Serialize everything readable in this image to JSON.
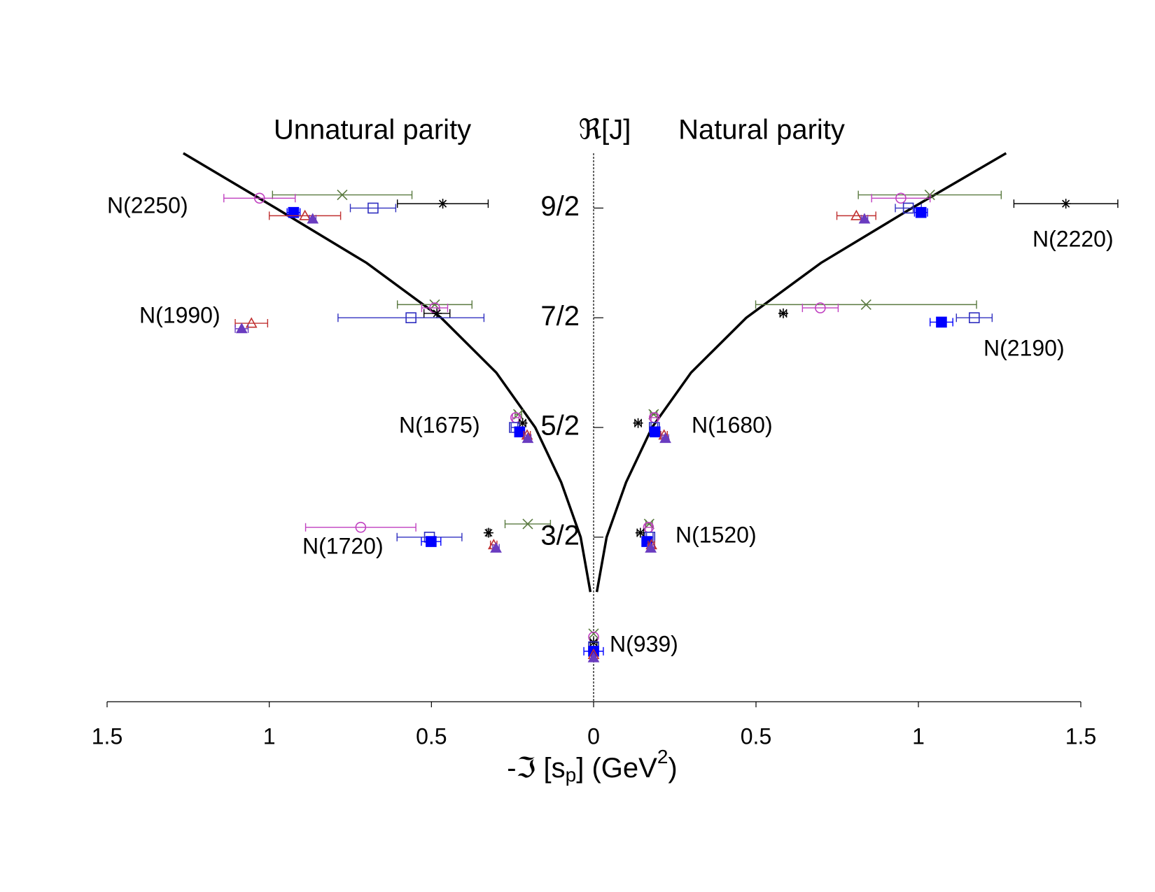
{
  "chart_data": [
    {
      "type": "scatter",
      "title": "Unnatural parity",
      "xlim": [
        1.5,
        0
      ],
      "ylim": [
        0,
        5
      ],
      "xticks": [
        1.5,
        1,
        0.5,
        0
      ],
      "curve": {
        "x": [
          0.01,
          0.04,
          0.1,
          0.18,
          0.3,
          0.47,
          0.7,
          0.98,
          1.265
        ],
        "y": [
          1,
          1.5,
          2,
          2.5,
          3,
          3.5,
          4,
          4.5,
          5
        ]
      },
      "series": [
        {
          "marker": "cross",
          "color": "#5a7a40",
          "x": [
            0.775,
            0.49,
            0.232,
            0.203
          ],
          "y": [
            4.62,
            3.62,
            2.62,
            1.62
          ],
          "xerr": [
            0.215,
            0.115,
            0.01,
            0.07
          ]
        },
        {
          "marker": "open-circle",
          "color": "#c040c0",
          "x": [
            1.03,
            0.49,
            0.24,
            0.718
          ],
          "y": [
            4.59,
            3.59,
            2.59,
            1.59
          ],
          "xerr": [
            0.11,
            0.04,
            0.01,
            0.17
          ]
        },
        {
          "marker": "asterisk",
          "color": "#000000",
          "x": [
            0.465,
            0.483,
            0.219,
            0.324
          ],
          "y": [
            4.54,
            3.54,
            2.54,
            1.54
          ],
          "xerr": [
            0.14,
            0.04,
            0.01,
            0.005
          ]
        },
        {
          "marker": "open-square",
          "color": "#3030c0",
          "x": [
            0.68,
            0.563,
            0.244,
            0.506
          ],
          "y": [
            4.5,
            3.5,
            2.5,
            1.5
          ],
          "xerr": [
            0.07,
            0.225,
            0.01,
            0.1
          ]
        },
        {
          "marker": "filled-square",
          "color": "#0000ff",
          "x": [
            0.925,
            null,
            0.228,
            0.501
          ],
          "y": [
            4.46,
            null,
            2.46,
            1.46
          ],
          "xerr": [
            0.02,
            null,
            0.01,
            0.03
          ]
        },
        {
          "marker": "open-triangle",
          "color": "#c03030",
          "x": [
            0.89,
            1.055,
            0.205,
            0.308
          ],
          "y": [
            4.43,
            3.45,
            2.43,
            1.43
          ],
          "xerr": [
            0.11,
            0.05,
            0.01,
            0.01
          ]
        },
        {
          "marker": "filled-triangle",
          "color": "#6a3cc0",
          "x": [
            0.866,
            1.085,
            0.203,
            0.301
          ],
          "y": [
            4.4,
            3.4,
            2.4,
            1.4
          ],
          "xerr": [
            0.01,
            0.02,
            0.01,
            0.01
          ]
        }
      ],
      "annotations": [
        "N(2250)",
        "N(1990)",
        "N(1675)",
        "N(1720)"
      ]
    },
    {
      "type": "scatter",
      "title": "Natural parity",
      "y_label": "ℜ[J]",
      "x_label": [
        "-ℑ [s",
        "p",
        "] (GeV",
        "2",
        ")"
      ],
      "xlim": [
        0,
        1.5
      ],
      "ylim": [
        0,
        5
      ],
      "xticks": [
        0.5,
        1,
        1.5
      ],
      "yticks": [
        {
          "value": 1.5,
          "label": "3/2"
        },
        {
          "value": 2.5,
          "label": "5/2"
        },
        {
          "value": 3.5,
          "label": "7/2"
        },
        {
          "value": 4.5,
          "label": "9/2"
        }
      ],
      "curve": {
        "x": [
          0.01,
          0.04,
          0.1,
          0.18,
          0.3,
          0.47,
          0.7,
          0.98,
          1.27
        ],
        "y": [
          1,
          1.5,
          2,
          2.5,
          3,
          3.5,
          4,
          4.5,
          5
        ]
      },
      "series": [
        {
          "marker": "cross",
          "color": "#5a7a40",
          "x": [
            1.035,
            0.839,
            0.185,
            0.171,
            0
          ],
          "y": [
            4.62,
            3.62,
            2.62,
            1.62,
            0.62
          ],
          "xerr": [
            0.22,
            0.34,
            0.01,
            0.01,
            0
          ]
        },
        {
          "marker": "open-circle",
          "color": "#c040c0",
          "x": [
            0.946,
            0.698,
            0.187,
            0.169,
            0
          ],
          "y": [
            4.59,
            3.59,
            2.59,
            1.59,
            0.59
          ],
          "xerr": [
            0.09,
            0.055,
            0.01,
            0.01,
            0
          ]
        },
        {
          "marker": "asterisk",
          "color": "#000000",
          "x": [
            1.454,
            0.584,
            0.137,
            0.144,
            0
          ],
          "y": [
            4.54,
            3.54,
            2.54,
            1.54,
            0.54
          ],
          "xerr": [
            0.16,
            0.01,
            0.01,
            0.01,
            0.01
          ]
        },
        {
          "marker": "open-square",
          "color": "#3030c0",
          "x": [
            0.969,
            1.172,
            0.187,
            0.173,
            0
          ],
          "y": [
            4.5,
            3.5,
            2.5,
            1.5,
            0.5
          ],
          "xerr": [
            0.04,
            0.055,
            0.01,
            0.01,
            0
          ]
        },
        {
          "marker": "filled-square",
          "color": "#0000ff",
          "x": [
            1.008,
            1.071,
            0.189,
            0.164,
            0
          ],
          "y": [
            4.46,
            3.46,
            2.46,
            1.46,
            0.46
          ],
          "xerr": [
            0.02,
            0.035,
            0.01,
            0.01,
            0.03
          ]
        },
        {
          "marker": "open-triangle",
          "color": "#c03030",
          "x": [
            0.809,
            null,
            0.217,
            0.178,
            0
          ],
          "y": [
            4.43,
            null,
            2.43,
            1.43,
            0.43
          ],
          "xerr": [
            0.06,
            null,
            0.01,
            0.01,
            0
          ]
        },
        {
          "marker": "filled-triangle",
          "color": "#6a3cc0",
          "x": [
            0.834,
            null,
            0.221,
            0.176,
            0
          ],
          "y": [
            4.4,
            null,
            2.4,
            1.4,
            0.4
          ],
          "xerr": [
            0.01,
            null,
            0.01,
            0.01,
            0
          ]
        }
      ],
      "annotations": [
        "N(2220)",
        "N(2190)",
        "N(1680)",
        "N(1520)",
        "N(939)"
      ]
    }
  ]
}
